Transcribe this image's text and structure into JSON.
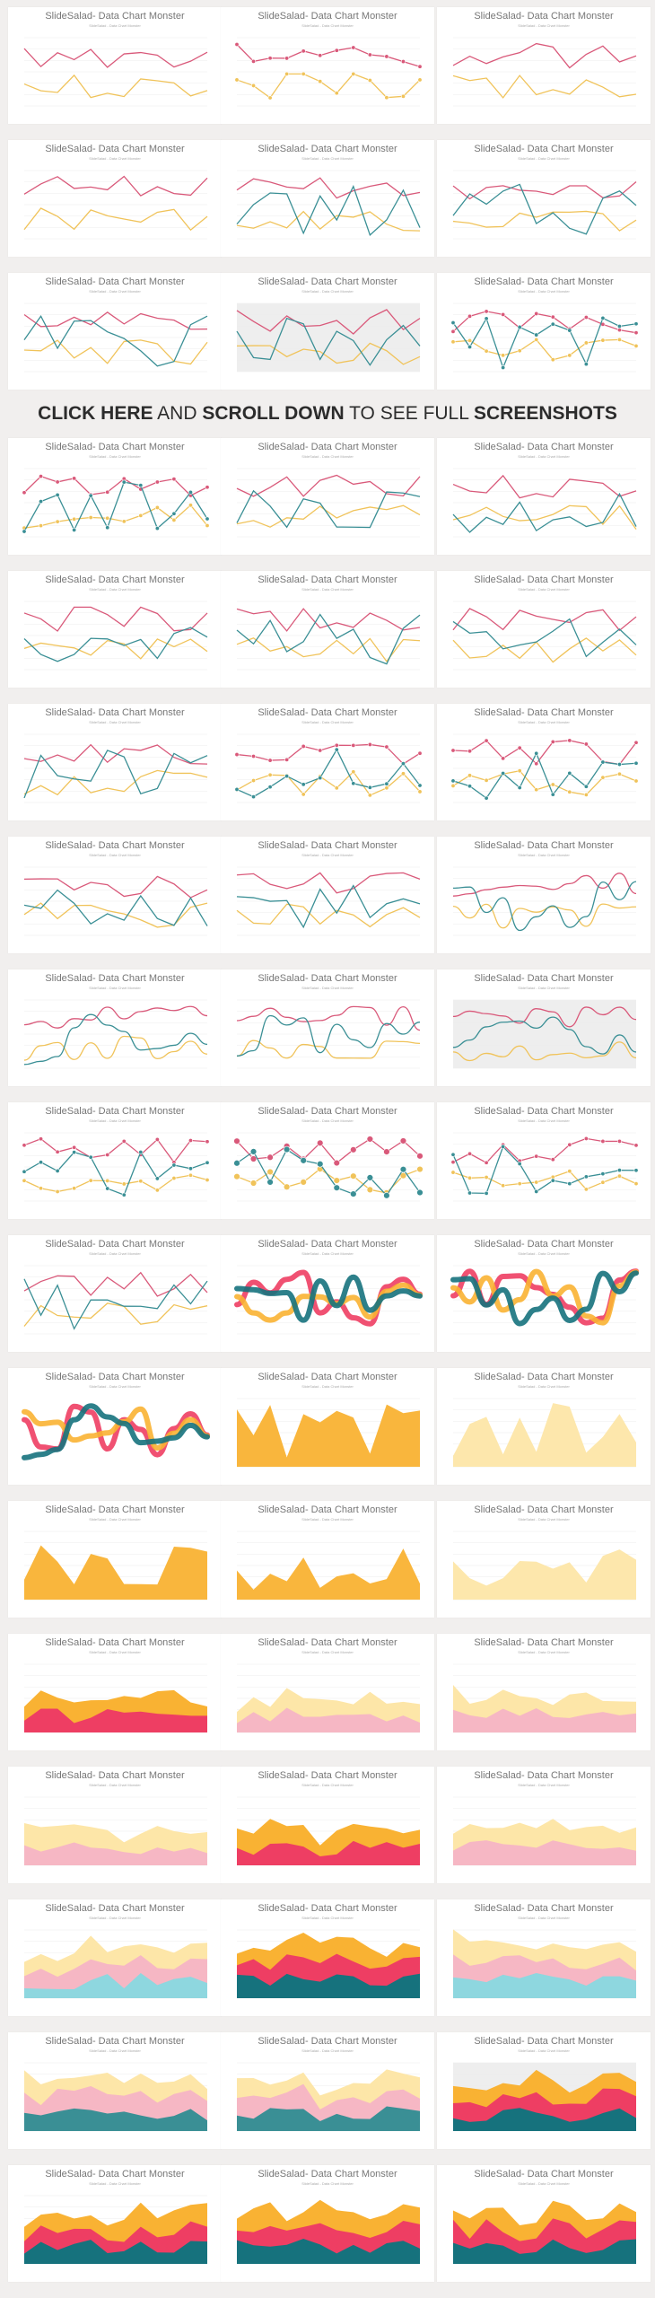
{
  "banner": {
    "part1_bold": "CLICK HERE",
    "part2": " AND ",
    "part3_bold": "SCROLL DOWN",
    "part4": " TO SEE FULL ",
    "part5_bold": "SCREENSHOTS"
  },
  "card_title": "SlideSalad- Data Chart Monster",
  "card_subtitle": "SlideSalad - Data Chart Monster",
  "colors": {
    "pink": "#d9597a",
    "yellow": "#f0c35a",
    "teal": "#3a8f95",
    "orange": "#f9b233",
    "red": "#ee3e63",
    "light_yellow": "#fde6a8",
    "light_pink": "#f6b7c4",
    "light_teal": "#8ed7df",
    "dark_teal": "#16727d",
    "background": "#f1efee"
  },
  "cards": [
    {
      "kind": "line2"
    },
    {
      "kind": "line2m"
    },
    {
      "kind": "line2"
    },
    {
      "kind": "line2l"
    },
    {
      "kind": "line3"
    },
    {
      "kind": "line3"
    },
    {
      "kind": "line3"
    },
    {
      "kind": "line3g"
    },
    {
      "kind": "line3m"
    },
    {
      "kind": "line3m"
    },
    {
      "kind": "line3"
    },
    {
      "kind": "line3"
    },
    {
      "kind": "line3t"
    },
    {
      "kind": "line3t"
    },
    {
      "kind": "line3t"
    },
    {
      "kind": "line3t"
    },
    {
      "kind": "line3m"
    },
    {
      "kind": "line3mt"
    },
    {
      "kind": "line3t"
    },
    {
      "kind": "line3t"
    },
    {
      "kind": "curve3"
    },
    {
      "kind": "curve3"
    },
    {
      "kind": "curve3"
    },
    {
      "kind": "curve3g"
    },
    {
      "kind": "line3m"
    },
    {
      "kind": "line3mb"
    },
    {
      "kind": "line3m"
    },
    {
      "kind": "line3l"
    },
    {
      "kind": "ribbon"
    },
    {
      "kind": "ribbon2"
    },
    {
      "kind": "ribbon3d"
    },
    {
      "kind": "area1"
    },
    {
      "kind": "area1l"
    },
    {
      "kind": "area1"
    },
    {
      "kind": "area1"
    },
    {
      "kind": "area1l"
    },
    {
      "kind": "stack2"
    },
    {
      "kind": "stack2l"
    },
    {
      "kind": "stack2p"
    },
    {
      "kind": "stack2p"
    },
    {
      "kind": "stack2"
    },
    {
      "kind": "stack2lab"
    },
    {
      "kind": "stack3lab"
    },
    {
      "kind": "stack3"
    },
    {
      "kind": "stack3l"
    },
    {
      "kind": "stack3p"
    },
    {
      "kind": "stack3p"
    },
    {
      "kind": "stack3g"
    },
    {
      "kind": "stack3"
    },
    {
      "kind": "stack3d"
    },
    {
      "kind": "stack3d2"
    }
  ]
}
